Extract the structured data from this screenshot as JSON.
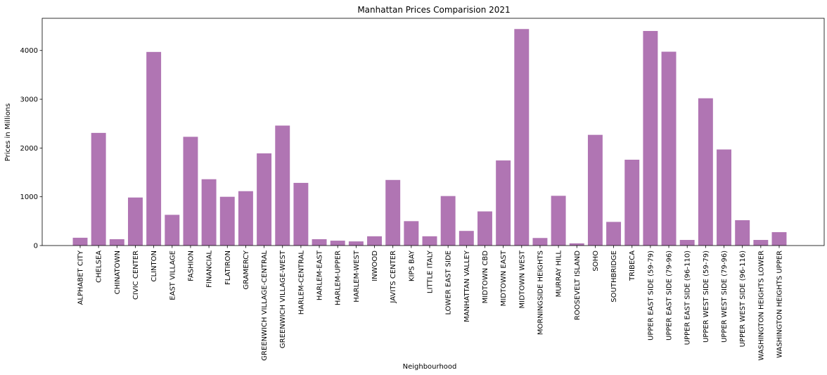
{
  "chart_data": {
    "type": "bar",
    "title": "Manhattan Prices Comparision 2021",
    "xlabel": "Neighbourhood",
    "ylabel": "Prices in Millions",
    "ylim": [
      0,
      4660
    ],
    "yticks": [
      0,
      1000,
      2000,
      3000,
      4000
    ],
    "bar_color": "#b075b3",
    "grid": false,
    "categories": [
      "ALPHABET CITY",
      "CHELSEA",
      "CHINATOWN",
      "CIVIC CENTER",
      "CLINTON",
      "EAST VILLAGE",
      "FASHION",
      "FINANCIAL",
      "FLATIRON",
      "GRAMERCY",
      "GREENWICH VILLAGE-CENTRAL",
      "GREENWICH VILLAGE-WEST",
      "HARLEM-CENTRAL",
      "HARLEM-EAST",
      "HARLEM-UPPER",
      "HARLEM-WEST",
      "INWOOD",
      "JAVITS CENTER",
      "KIPS BAY",
      "LITTLE ITALY",
      "LOWER EAST SIDE",
      "MANHATTAN VALLEY",
      "MIDTOWN CBD",
      "MIDTOWN EAST",
      "MIDTOWN WEST",
      "MORNINGSIDE HEIGHTS",
      "MURRAY HILL",
      "ROOSEVELT ISLAND",
      "SOHO",
      "SOUTHBRIDGE",
      "TRIBECA",
      "UPPER EAST SIDE (59-79)",
      "UPPER EAST SIDE (79-96)",
      "UPPER EAST SIDE (96-110)",
      "UPPER WEST SIDE (59-79)",
      "UPPER WEST SIDE (79-96)",
      "UPPER WEST SIDE (96-116)",
      "WASHINGTON HEIGHTS LOWER",
      "WASHINGTON HEIGHTS UPPER"
    ],
    "values": [
      160,
      2310,
      130,
      985,
      3970,
      630,
      2230,
      1360,
      1000,
      1115,
      1890,
      2460,
      1285,
      130,
      100,
      85,
      190,
      1345,
      500,
      190,
      1015,
      300,
      700,
      1745,
      4440,
      155,
      1020,
      45,
      2270,
      485,
      1760,
      4400,
      3975,
      115,
      3020,
      1970,
      520,
      115,
      275
    ]
  }
}
